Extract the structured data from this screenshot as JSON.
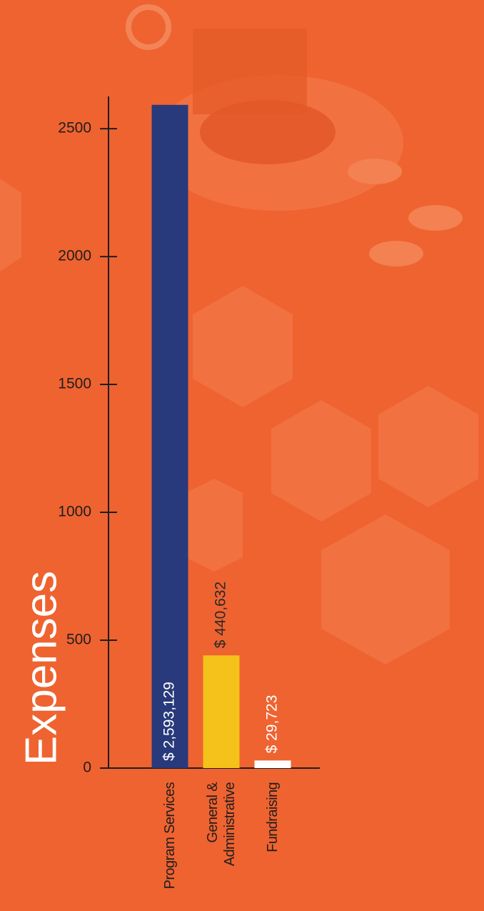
{
  "chart_data": {
    "type": "bar",
    "ylabel": "Expenses",
    "categories": [
      "Program Services",
      "General & Administrative",
      "Fundraising"
    ],
    "values": [
      2593.129,
      440.632,
      29.723
    ],
    "value_labels": [
      "$ 2,593,129",
      "$ 440,632",
      "$ 29,723"
    ],
    "colors": [
      "#283a7b",
      "#f4c21a",
      "#ffffff"
    ],
    "value_label_colors": [
      "#ffffff",
      "#2a2a2a",
      "#ffffff"
    ],
    "ylim": [
      0,
      2626
    ],
    "yticks": [
      0,
      500,
      1000,
      1500,
      2000,
      2500
    ],
    "grid": false
  }
}
